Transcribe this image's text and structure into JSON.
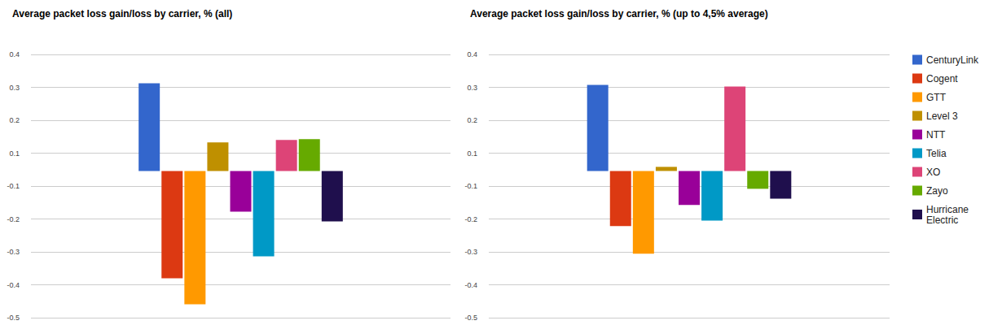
{
  "chart_data": [
    {
      "type": "bar",
      "title": "Average packet loss gain/loss by carrier, % (all)",
      "categories": [
        null
      ],
      "series": [
        {
          "name": "CenturyLink",
          "color": "#3366cc",
          "values": [
            0.32
          ]
        },
        {
          "name": "Cogent",
          "color": "#dc3912",
          "values": [
            -0.391
          ]
        },
        {
          "name": "GTT",
          "color": "#ff9900",
          "values": [
            -0.486
          ]
        },
        {
          "name": "Level 3",
          "color": "#bf9000",
          "values": [
            0.104
          ]
        },
        {
          "name": "NTT",
          "color": "#990099",
          "values": [
            -0.148
          ]
        },
        {
          "name": "Telia",
          "color": "#0099c6",
          "values": [
            -0.311
          ]
        },
        {
          "name": "XO",
          "color": "#dd4477",
          "values": [
            0.113
          ]
        },
        {
          "name": "Zayo",
          "color": "#66aa00",
          "values": [
            0.116
          ]
        },
        {
          "name": "Hurricane Electric",
          "color": "#1f0f4d",
          "values": [
            -0.184
          ]
        }
      ],
      "ylim": [
        -0.535,
        0.425
      ],
      "yticks": [
        {
          "value": -0.535,
          "label": "-0.5"
        },
        {
          "value": -0.415,
          "label": "-0.4"
        },
        {
          "value": -0.295,
          "label": "-0.3"
        },
        {
          "value": -0.175,
          "label": "-0.2"
        },
        {
          "value": -0.055,
          "label": "-0.1"
        },
        {
          "value": 0.065,
          "label": "0.1"
        },
        {
          "value": 0.185,
          "label": "0.2"
        },
        {
          "value": 0.305,
          "label": "0.3"
        },
        {
          "value": 0.425,
          "label": "0.4"
        }
      ],
      "grid": true,
      "tick_labels": "y"
    },
    {
      "type": "bar",
      "title": "Average packet loss gain/loss by carrier, % (up to 4,5% average)",
      "categories": [
        null
      ],
      "series": [
        {
          "name": "CenturyLink",
          "color": "#3366cc",
          "values": [
            0.314
          ]
        },
        {
          "name": "Cogent",
          "color": "#dc3912",
          "values": [
            -0.201
          ]
        },
        {
          "name": "GTT",
          "color": "#ff9900",
          "values": [
            -0.302
          ]
        },
        {
          "name": "Level 3",
          "color": "#bf9000",
          "values": [
            0.015
          ]
        },
        {
          "name": "NTT",
          "color": "#990099",
          "values": [
            -0.124
          ]
        },
        {
          "name": "Telia",
          "color": "#0099c6",
          "values": [
            -0.181
          ]
        },
        {
          "name": "XO",
          "color": "#dd4477",
          "values": [
            0.308
          ]
        },
        {
          "name": "Zayo",
          "color": "#66aa00",
          "values": [
            -0.065
          ]
        },
        {
          "name": "Hurricane Electric",
          "color": "#1f0f4d",
          "values": [
            -0.101
          ]
        }
      ],
      "ylim": [
        -0.535,
        0.425
      ],
      "yticks": [
        {
          "value": -0.535,
          "label": "-0.5"
        },
        {
          "value": -0.415,
          "label": "-0.4"
        },
        {
          "value": -0.295,
          "label": "-0.3"
        },
        {
          "value": -0.175,
          "label": "-0.2"
        },
        {
          "value": -0.055,
          "label": "-0.1"
        },
        {
          "value": 0.065,
          "label": "0.1"
        },
        {
          "value": 0.185,
          "label": "0.2"
        },
        {
          "value": 0.305,
          "label": "0.3"
        },
        {
          "value": 0.425,
          "label": "0.4"
        }
      ],
      "grid": true,
      "tick_labels": "y",
      "legend": "right"
    }
  ]
}
